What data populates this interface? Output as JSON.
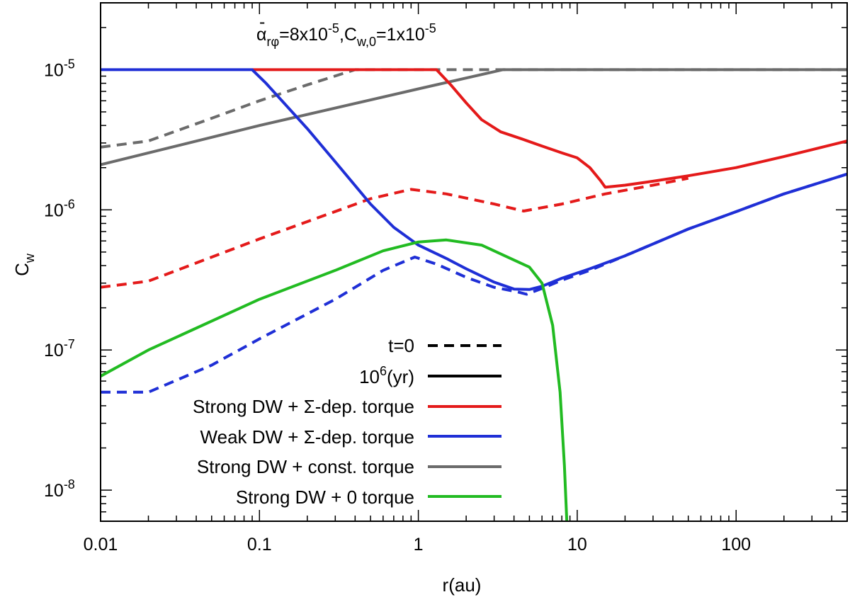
{
  "chart_data": {
    "type": "line",
    "title": "",
    "annotation": {
      "alpha_symbol": "α",
      "alpha_bar": "-",
      "alpha_sub": "rφ",
      "alpha_eq": "=8x10",
      "alpha_exp": "-5",
      "cw_sep": ",C",
      "cw_sub": "w,0",
      "cw_eq": "=1x10",
      "cw_exp": "-5"
    },
    "xlabel": "r(au)",
    "ylabel": {
      "main": "C",
      "sub": "w"
    },
    "xscale": "log",
    "yscale": "log",
    "xlim": [
      0.01,
      500
    ],
    "ylim": [
      6e-09,
      3e-05
    ],
    "x_ticks": [
      {
        "value": 0.01,
        "label": "0.01"
      },
      {
        "value": 0.1,
        "label": "0.1"
      },
      {
        "value": 1,
        "label": "1"
      },
      {
        "value": 10,
        "label": "10"
      },
      {
        "value": 100,
        "label": "100"
      }
    ],
    "y_ticks": [
      {
        "value": 1e-08,
        "base": "10",
        "exp": "-8"
      },
      {
        "value": 1e-07,
        "base": "10",
        "exp": "-7"
      },
      {
        "value": 1e-06,
        "base": "10",
        "exp": "-6"
      },
      {
        "value": 1e-05,
        "base": "10",
        "exp": "-5"
      }
    ],
    "colors": {
      "red": "#e41a1a",
      "blue": "#1f2fd6",
      "gray": "#6b6b6b",
      "green": "#22bb22",
      "black": "#000000"
    },
    "legend": {
      "placement": "lower-center",
      "entries": [
        {
          "label": "t=0",
          "style": "dashed",
          "color": "#000000"
        },
        {
          "label_base": "10",
          "label_exp": "6",
          "label_rest": "(yr)",
          "style": "solid",
          "color": "#000000"
        },
        {
          "label": "Strong DW + Σ-dep. torque",
          "style": "solid",
          "color": "#e41a1a"
        },
        {
          "label": "Weak DW + Σ-dep. torque",
          "style": "solid",
          "color": "#1f2fd6"
        },
        {
          "label": "Strong DW + const. torque",
          "style": "solid",
          "color": "#6b6b6b"
        },
        {
          "label": "Strong DW + 0 torque",
          "style": "solid",
          "color": "#22bb22"
        }
      ]
    },
    "series": [
      {
        "name": "Strong DW + const. torque (t=0)",
        "color": "#6b6b6b",
        "style": "dashed",
        "points": [
          [
            0.01,
            2.8e-06
          ],
          [
            0.02,
            3.1e-06
          ],
          [
            0.05,
            4.5e-06
          ],
          [
            0.1,
            6e-06
          ],
          [
            0.2,
            7.8e-06
          ],
          [
            0.4,
            1e-05
          ],
          [
            500,
            1e-05
          ]
        ]
      },
      {
        "name": "Strong DW + const. torque (10^6 yr)",
        "color": "#6b6b6b",
        "style": "solid",
        "points": [
          [
            0.01,
            2.1e-06
          ],
          [
            0.1,
            4e-06
          ],
          [
            1,
            7.3e-06
          ],
          [
            3.4,
            1e-05
          ],
          [
            500,
            1e-05
          ]
        ]
      },
      {
        "name": "Strong DW + Σ-dep. torque (t=0)",
        "color": "#e41a1a",
        "style": "dashed",
        "points": [
          [
            0.01,
            2.8e-07
          ],
          [
            0.02,
            3.1e-07
          ],
          [
            0.1,
            6.2e-07
          ],
          [
            0.5,
            1.2e-06
          ],
          [
            0.9,
            1.4e-06
          ],
          [
            1.5,
            1.3e-06
          ],
          [
            3,
            1.1e-06
          ],
          [
            4.6,
            9.8e-07
          ],
          [
            8,
            1.1e-06
          ],
          [
            15,
            1.3e-06
          ],
          [
            30,
            1.5e-06
          ],
          [
            50,
            1.68e-06
          ]
        ]
      },
      {
        "name": "Strong DW + Σ-dep. torque (10^6 yr)",
        "color": "#e41a1a",
        "style": "solid",
        "points": [
          [
            0.09,
            1e-05
          ],
          [
            1.3,
            1e-05
          ],
          [
            1.6,
            7.8e-06
          ],
          [
            2,
            5.8e-06
          ],
          [
            2.5,
            4.4e-06
          ],
          [
            3.3,
            3.6e-06
          ],
          [
            4.5,
            3.2e-06
          ],
          [
            6,
            2.85e-06
          ],
          [
            8,
            2.55e-06
          ],
          [
            10,
            2.35e-06
          ],
          [
            12,
            2e-06
          ],
          [
            14,
            1.62e-06
          ],
          [
            15,
            1.45e-06
          ],
          [
            20,
            1.5e-06
          ],
          [
            30,
            1.6e-06
          ],
          [
            50,
            1.75e-06
          ],
          [
            100,
            2e-06
          ],
          [
            200,
            2.4e-06
          ],
          [
            500,
            3.1e-06
          ]
        ]
      },
      {
        "name": "Weak DW + Σ-dep. torque (t=0)",
        "color": "#1f2fd6",
        "style": "dashed",
        "points": [
          [
            0.01,
            5e-08
          ],
          [
            0.02,
            5e-08
          ],
          [
            0.05,
            7.8e-08
          ],
          [
            0.1,
            1.2e-07
          ],
          [
            0.3,
            2.3e-07
          ],
          [
            0.6,
            3.7e-07
          ],
          [
            0.95,
            4.6e-07
          ],
          [
            1.3,
            4.1e-07
          ],
          [
            2,
            3.3e-07
          ],
          [
            3,
            2.8e-07
          ],
          [
            4.2,
            2.6e-07
          ],
          [
            4.8,
            2.5e-07
          ],
          [
            6,
            2.75e-07
          ],
          [
            8,
            3.15e-07
          ],
          [
            12,
            3.7e-07
          ],
          [
            20,
            4.7e-07
          ],
          [
            50,
            7.3e-07
          ],
          [
            100,
            9.7e-07
          ],
          [
            200,
            1.3e-06
          ],
          [
            500,
            1.8e-06
          ]
        ]
      },
      {
        "name": "Weak DW + Σ-dep. torque (10^6 yr)",
        "color": "#1f2fd6",
        "style": "solid",
        "points": [
          [
            0.01,
            1e-05
          ],
          [
            0.09,
            1e-05
          ],
          [
            0.11,
            8e-06
          ],
          [
            0.2,
            3.8e-06
          ],
          [
            0.3,
            2.2e-06
          ],
          [
            0.5,
            1.1e-06
          ],
          [
            0.7,
            7.5e-07
          ],
          [
            1,
            5.6e-07
          ],
          [
            1.5,
            4.5e-07
          ],
          [
            2,
            3.8e-07
          ],
          [
            3,
            3.05e-07
          ],
          [
            4,
            2.72e-07
          ],
          [
            5,
            2.7e-07
          ],
          [
            6,
            2.85e-07
          ],
          [
            8,
            3.25e-07
          ],
          [
            12,
            3.8e-07
          ],
          [
            20,
            4.7e-07
          ],
          [
            50,
            7.3e-07
          ],
          [
            100,
            9.7e-07
          ],
          [
            200,
            1.3e-06
          ],
          [
            500,
            1.8e-06
          ]
        ]
      },
      {
        "name": "Strong DW + 0 torque (10^6 yr)",
        "color": "#22bb22",
        "style": "solid",
        "points": [
          [
            0.01,
            6.5e-08
          ],
          [
            0.02,
            1e-07
          ],
          [
            0.1,
            2.3e-07
          ],
          [
            0.3,
            3.7e-07
          ],
          [
            0.6,
            5.1e-07
          ],
          [
            1,
            5.9e-07
          ],
          [
            1.5,
            6.1e-07
          ],
          [
            2.5,
            5.6e-07
          ],
          [
            3.5,
            4.7e-07
          ],
          [
            5,
            3.9e-07
          ],
          [
            6,
            3e-07
          ],
          [
            7,
            1.5e-07
          ],
          [
            7.8,
            5e-08
          ],
          [
            8.3,
            1.5e-08
          ],
          [
            8.6,
            6e-09
          ]
        ]
      }
    ]
  }
}
